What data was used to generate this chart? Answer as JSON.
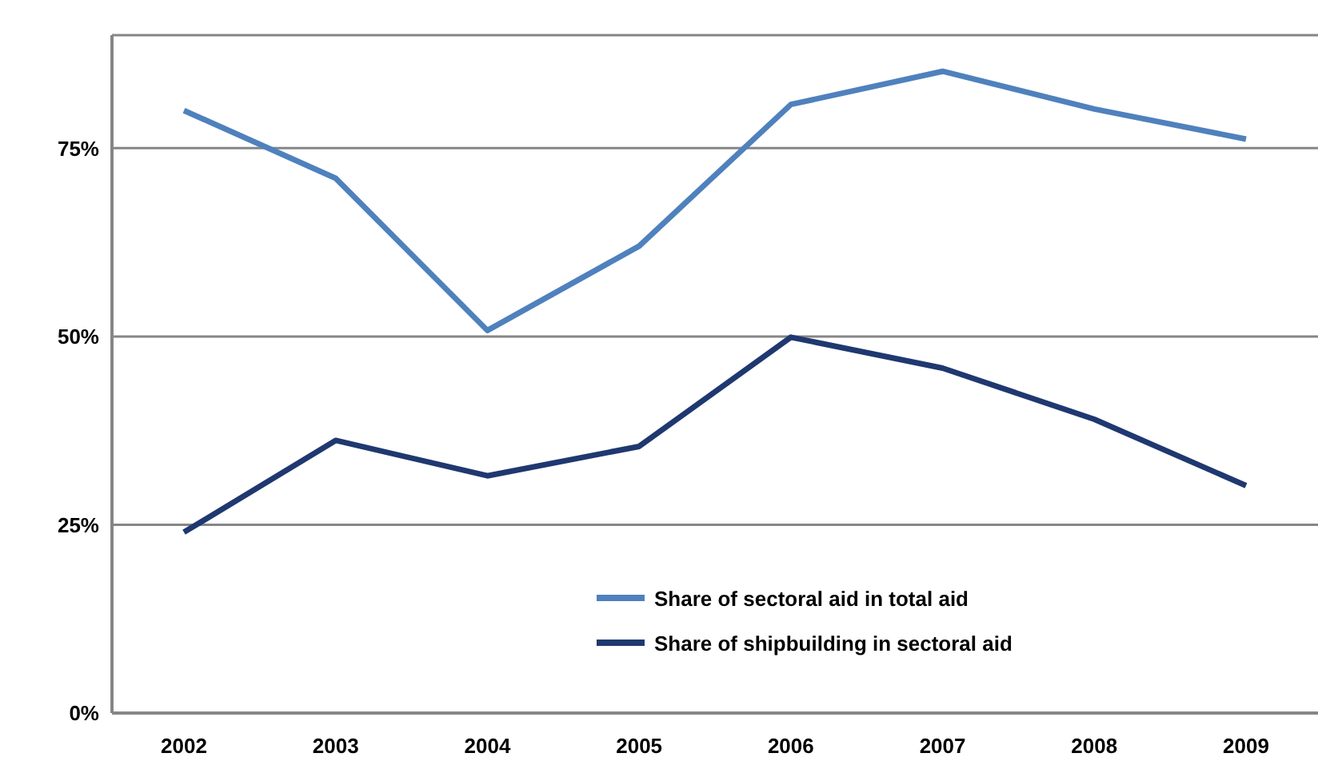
{
  "chart_data": {
    "type": "line",
    "categories": [
      "2002",
      "2003",
      "2004",
      "2005",
      "2006",
      "2007",
      "2008",
      "2009"
    ],
    "series": [
      {
        "name": "Share of sectoral aid in total aid",
        "color": "#4f81bd",
        "values": [
          80.0,
          71.0,
          50.8,
          62.0,
          80.8,
          85.2,
          80.2,
          76.2
        ]
      },
      {
        "name": "Share of shipbuilding in sectoral aid",
        "color": "#1f3870",
        "values": [
          24.0,
          36.2,
          31.5,
          35.4,
          49.9,
          45.8,
          39.0,
          30.2
        ]
      }
    ],
    "ylim": [
      0,
      90
    ],
    "yticks": [
      {
        "value": 0,
        "label": "0%"
      },
      {
        "value": 25,
        "label": "25%"
      },
      {
        "value": 50,
        "label": "50%"
      },
      {
        "value": 75,
        "label": "75%"
      }
    ],
    "grid": "y",
    "legend": "bottom right",
    "marker": "none",
    "line_style": "solid"
  }
}
